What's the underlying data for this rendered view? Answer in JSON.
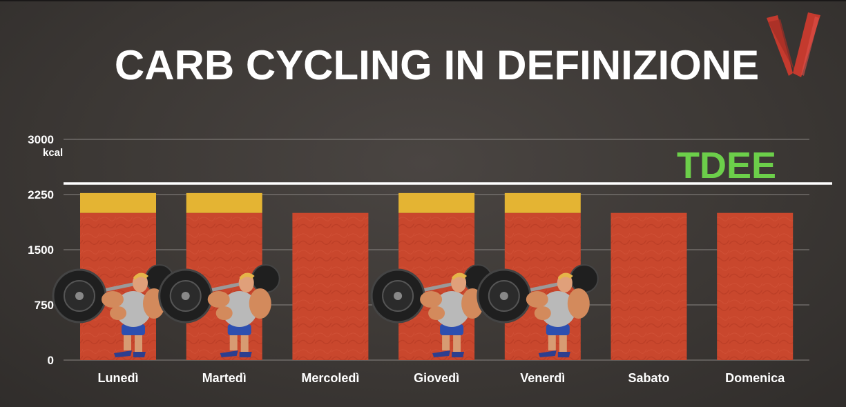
{
  "title": "CARB CYCLING IN DEFINIZIONE",
  "colors": {
    "base": "#c9472d",
    "extra": "#e4b433",
    "tdee_line": "#ffffff",
    "tdee_label": "#6ccf4a",
    "logo": "#c43a2e"
  },
  "icons": {
    "lifter": "weightlifter-icon",
    "logo": "v-logo-icon"
  },
  "chart_data": {
    "type": "bar",
    "stacked": true,
    "categories": [
      "Lunedì",
      "Martedì",
      "Mercoledì",
      "Giovedì",
      "Venerdì",
      "Sabato",
      "Domenica"
    ],
    "series": [
      {
        "values": [
          2000,
          2000,
          2000,
          2000,
          2000,
          2000,
          2000
        ]
      },
      {
        "values": [
          270,
          270,
          0,
          270,
          270,
          0,
          0
        ]
      }
    ],
    "training_days": [
      true,
      true,
      false,
      true,
      true,
      false,
      false
    ],
    "y_ticks": [
      "0",
      "750",
      "1500",
      "2250",
      "3000"
    ],
    "y_tick_values": [
      0,
      750,
      1500,
      2250,
      3000
    ],
    "ylabel": "kcal",
    "ylim": [
      0,
      3000
    ],
    "reference_line": {
      "label": "TDEE",
      "value": 2400
    },
    "grid": true,
    "legend": "none"
  }
}
